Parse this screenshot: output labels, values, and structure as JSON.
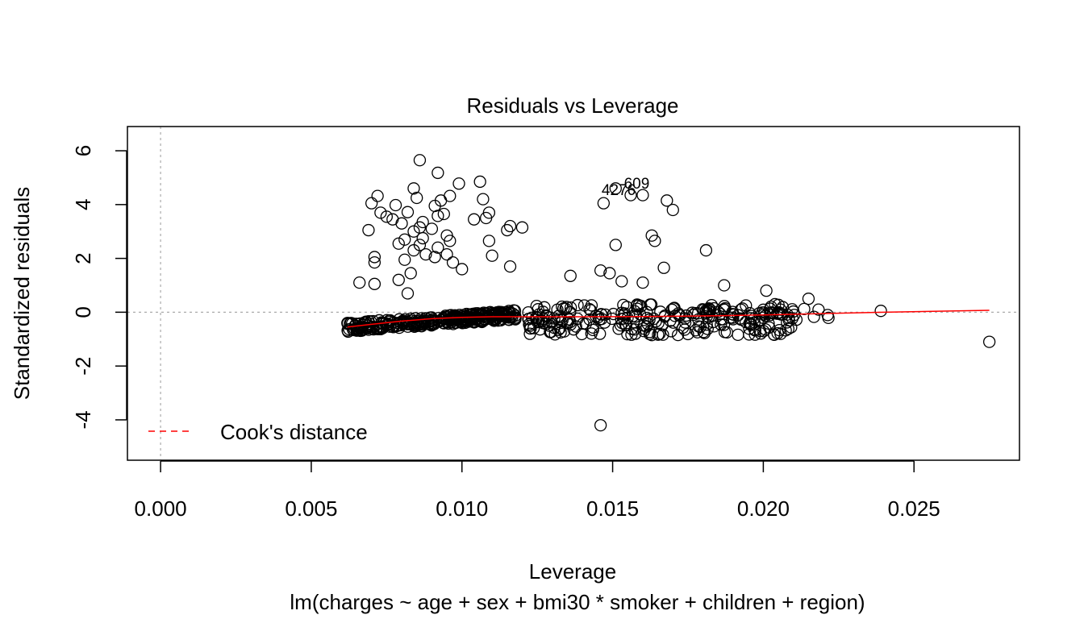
{
  "chart_data": {
    "type": "scatter",
    "title": "Residuals vs Leverage",
    "xlabel": "Leverage",
    "subtitle": "lm(charges ~ age + sex + bmi30 * smoker + children + region)",
    "ylabel": "Standardized residuals",
    "xlim": [
      -0.0011,
      0.0285
    ],
    "ylim": [
      -5.5,
      6.9
    ],
    "x_ticks": [
      "0.000",
      "0.005",
      "0.010",
      "0.015",
      "0.020",
      "0.025"
    ],
    "x_tick_values": [
      0.0,
      0.005,
      0.01,
      0.015,
      0.02,
      0.025
    ],
    "y_ticks": [
      "-4",
      "-2",
      "0",
      "2",
      "4",
      "6"
    ],
    "y_tick_values": [
      -4,
      -2,
      0,
      2,
      4,
      6
    ],
    "reference_lines": {
      "h": 0,
      "v": 0,
      "style": "dotted",
      "color": "#aaaaaa"
    },
    "legend": {
      "placement": "bottom-left",
      "entries": [
        {
          "label": "Cook's distance",
          "color": "#ff0000",
          "style": "dashed"
        }
      ]
    },
    "annotations": [
      {
        "text": "609",
        "x": 0.0158,
        "y": 4.6
      },
      {
        "text": "4276",
        "x": 0.0152,
        "y": 4.35
      }
    ],
    "smooth_line": {
      "color": "#ff0000",
      "x": [
        0.0062,
        0.007,
        0.008,
        0.009,
        0.01,
        0.011,
        0.012,
        0.014,
        0.016,
        0.018,
        0.02,
        0.022,
        0.024,
        0.026,
        0.0275
      ],
      "y": [
        -0.55,
        -0.45,
        -0.33,
        -0.24,
        -0.19,
        -0.17,
        -0.17,
        -0.17,
        -0.16,
        -0.14,
        -0.1,
        -0.05,
        0.0,
        0.04,
        0.07
      ]
    },
    "points_outlier": [
      [
        0.0086,
        5.65
      ],
      [
        0.0092,
        5.18
      ],
      [
        0.0106,
        4.85
      ],
      [
        0.0099,
        4.78
      ],
      [
        0.0084,
        4.6
      ],
      [
        0.0072,
        4.32
      ],
      [
        0.0096,
        4.32
      ],
      [
        0.0085,
        4.25
      ],
      [
        0.0093,
        4.15
      ],
      [
        0.0107,
        4.2
      ],
      [
        0.007,
        4.05
      ],
      [
        0.0078,
        3.98
      ],
      [
        0.0091,
        3.95
      ],
      [
        0.0073,
        3.7
      ],
      [
        0.0082,
        3.72
      ],
      [
        0.0075,
        3.55
      ],
      [
        0.0092,
        3.58
      ],
      [
        0.0094,
        3.65
      ],
      [
        0.0109,
        3.7
      ],
      [
        0.0077,
        3.45
      ],
      [
        0.0087,
        3.35
      ],
      [
        0.0104,
        3.45
      ],
      [
        0.0108,
        3.5
      ],
      [
        0.008,
        3.3
      ],
      [
        0.0086,
        3.15
      ],
      [
        0.009,
        3.1
      ],
      [
        0.0115,
        3.05
      ],
      [
        0.012,
        3.15
      ],
      [
        0.0116,
        3.2
      ],
      [
        0.0069,
        3.05
      ],
      [
        0.0084,
        3.0
      ],
      [
        0.0095,
        2.85
      ],
      [
        0.0087,
        2.75
      ],
      [
        0.0081,
        2.7
      ],
      [
        0.0096,
        2.65
      ],
      [
        0.0109,
        2.65
      ],
      [
        0.0079,
        2.55
      ],
      [
        0.0086,
        2.5
      ],
      [
        0.0092,
        2.4
      ],
      [
        0.0084,
        2.3
      ],
      [
        0.0088,
        2.15
      ],
      [
        0.0095,
        2.15
      ],
      [
        0.0091,
        2.05
      ],
      [
        0.011,
        2.1
      ],
      [
        0.0071,
        2.05
      ],
      [
        0.0081,
        1.95
      ],
      [
        0.0097,
        1.85
      ],
      [
        0.0071,
        1.85
      ],
      [
        0.0116,
        1.7
      ],
      [
        0.01,
        1.6
      ],
      [
        0.0083,
        1.45
      ],
      [
        0.0079,
        1.2
      ],
      [
        0.0066,
        1.1
      ],
      [
        0.0071,
        1.05
      ],
      [
        0.0082,
        0.7
      ],
      [
        0.0151,
        4.6
      ],
      [
        0.0147,
        4.05
      ],
      [
        0.0156,
        4.35
      ],
      [
        0.016,
        4.35
      ],
      [
        0.0168,
        4.15
      ],
      [
        0.017,
        3.8
      ],
      [
        0.0163,
        2.85
      ],
      [
        0.0164,
        2.65
      ],
      [
        0.0151,
        2.5
      ],
      [
        0.0181,
        2.3
      ],
      [
        0.0167,
        1.65
      ],
      [
        0.0146,
        1.55
      ],
      [
        0.0149,
        1.45
      ],
      [
        0.0136,
        1.35
      ],
      [
        0.0153,
        1.15
      ],
      [
        0.016,
        1.1
      ],
      [
        0.0187,
        1.0
      ],
      [
        0.0201,
        0.8
      ],
      [
        0.0215,
        0.5
      ],
      [
        0.0239,
        0.05
      ],
      [
        0.0275,
        -1.1
      ],
      [
        0.0146,
        -4.2
      ]
    ]
  }
}
